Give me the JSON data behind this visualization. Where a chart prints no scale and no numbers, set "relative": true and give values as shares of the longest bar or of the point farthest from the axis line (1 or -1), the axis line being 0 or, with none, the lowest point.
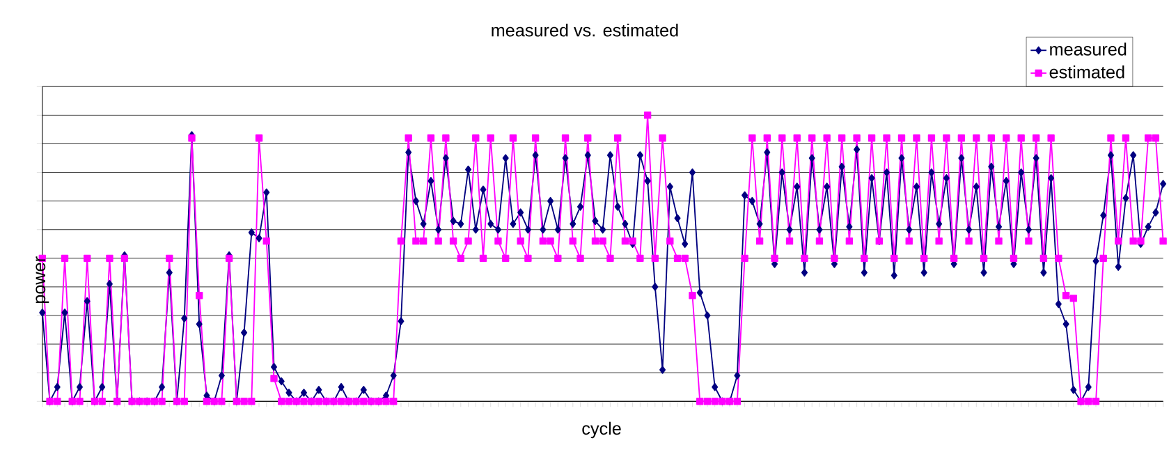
{
  "chart_data": {
    "type": "line",
    "title": "measured vs. estimated",
    "xlabel": "cycle",
    "ylabel": "power",
    "relative": true,
    "grid": "y",
    "legend": "top right",
    "line_style": "solid",
    "categories": [
      null,
      null,
      null,
      null,
      null,
      null,
      null,
      null,
      null,
      null,
      null,
      null,
      null,
      null,
      null,
      null,
      null,
      null,
      null,
      null,
      null,
      null,
      null,
      null,
      null,
      null,
      null,
      null,
      null,
      null,
      null,
      null,
      null,
      null,
      null,
      null,
      null,
      null,
      null,
      null,
      null,
      null,
      null,
      null,
      null,
      null,
      null,
      null,
      null,
      null,
      null,
      null,
      null,
      null,
      null,
      null,
      null,
      null,
      null,
      null,
      null,
      null,
      null,
      null,
      null,
      null,
      null,
      null,
      null,
      null,
      null,
      null,
      null,
      null,
      null,
      null,
      null,
      null,
      null,
      null,
      null,
      null,
      null,
      null,
      null,
      null,
      null,
      null,
      null,
      null,
      null,
      null,
      null,
      null,
      null,
      null,
      null,
      null,
      null,
      null,
      null,
      null,
      null,
      null,
      null,
      null,
      null,
      null,
      null,
      null,
      null,
      null,
      null,
      null,
      null,
      null,
      null,
      null,
      null,
      null,
      null,
      null,
      null,
      null,
      null,
      null,
      null,
      null,
      null,
      null,
      null,
      null,
      null,
      null,
      null,
      null,
      null,
      null,
      null,
      null,
      null,
      null,
      null,
      null,
      null,
      null,
      null,
      null,
      null,
      null,
      null
    ],
    "series": [
      {
        "name": "measured",
        "color": "#000080",
        "marker": "diamond",
        "values": [
          0.31,
          0,
          0.05,
          0.31,
          0,
          0.05,
          0.35,
          0,
          0.05,
          0.41,
          0,
          0.51,
          0,
          0,
          0,
          0,
          0.05,
          0.45,
          0,
          0.29,
          0.93,
          0.27,
          0.02,
          0,
          0.09,
          0.51,
          0,
          0.24,
          0.59,
          0.57,
          0.73,
          0.12,
          0.07,
          0.03,
          0,
          0.03,
          0,
          0.04,
          0,
          0,
          0.05,
          0,
          0,
          0.04,
          0,
          0,
          0.02,
          0.09,
          0.28,
          0.87,
          0.7,
          0.62,
          0.77,
          0.6,
          0.85,
          0.63,
          0.62,
          0.81,
          0.6,
          0.74,
          0.62,
          0.6,
          0.85,
          0.62,
          0.66,
          0.6,
          0.86,
          0.6,
          0.7,
          0.6,
          0.85,
          0.62,
          0.68,
          0.86,
          0.63,
          0.6,
          0.86,
          0.68,
          0.62,
          0.55,
          0.86,
          0.77,
          0.4,
          0.11,
          0.75,
          0.64,
          0.55,
          0.8,
          0.38,
          0.3,
          0.05,
          0,
          0,
          0.09,
          0.72,
          0.7,
          0.62,
          0.87,
          0.48,
          0.8,
          0.6,
          0.75,
          0.45,
          0.85,
          0.6,
          0.75,
          0.48,
          0.82,
          0.61,
          0.88,
          0.45,
          0.78,
          0.56,
          0.8,
          0.44,
          0.85,
          0.6,
          0.75,
          0.45,
          0.8,
          0.62,
          0.78,
          0.48,
          0.85,
          0.6,
          0.75,
          0.45,
          0.82,
          0.61,
          0.77,
          0.48,
          0.8,
          0.6,
          0.85,
          0.45,
          0.78,
          0.34,
          0.27,
          0.04,
          0,
          0.05,
          0.49,
          0.65,
          0.86,
          0.47,
          0.71,
          0.86,
          0.55,
          0.61,
          0.66,
          0.76
        ]
      },
      {
        "name": "estimated",
        "color": "#ff00ff",
        "marker": "square",
        "values": [
          0.5,
          0,
          0,
          0.5,
          0,
          0,
          0.5,
          0,
          0,
          0.5,
          0,
          0.5,
          0,
          0,
          0,
          0,
          0,
          0.5,
          0,
          0,
          0.92,
          0.37,
          0,
          0,
          0,
          0.5,
          0,
          0,
          0,
          0.92,
          0.56,
          0.08,
          0,
          0,
          0,
          0,
          0,
          0,
          0,
          0,
          0,
          0,
          0,
          0,
          0,
          0,
          0,
          0,
          0.56,
          0.92,
          0.56,
          0.56,
          0.92,
          0.56,
          0.92,
          0.56,
          0.5,
          0.56,
          0.92,
          0.5,
          0.92,
          0.56,
          0.5,
          0.92,
          0.56,
          0.5,
          0.92,
          0.56,
          0.56,
          0.5,
          0.92,
          0.56,
          0.5,
          0.92,
          0.56,
          0.56,
          0.5,
          0.92,
          0.56,
          0.56,
          0.5,
          1.0,
          0.5,
          0.92,
          0.56,
          0.5,
          0.5,
          0.37,
          0,
          0,
          0,
          0,
          0,
          0,
          0.5,
          0.92,
          0.56,
          0.92,
          0.5,
          0.92,
          0.56,
          0.92,
          0.5,
          0.92,
          0.56,
          0.92,
          0.5,
          0.92,
          0.56,
          0.92,
          0.5,
          0.92,
          0.56,
          0.92,
          0.5,
          0.92,
          0.56,
          0.92,
          0.5,
          0.92,
          0.56,
          0.92,
          0.5,
          0.92,
          0.56,
          0.92,
          0.5,
          0.92,
          0.56,
          0.92,
          0.5,
          0.92,
          0.56,
          0.92,
          0.5,
          0.92,
          0.5,
          0.37,
          0.36,
          0,
          0,
          0,
          0.5,
          0.92,
          0.56,
          0.92,
          0.56,
          0.56,
          0.92,
          0.92,
          0.56
        ]
      }
    ]
  }
}
